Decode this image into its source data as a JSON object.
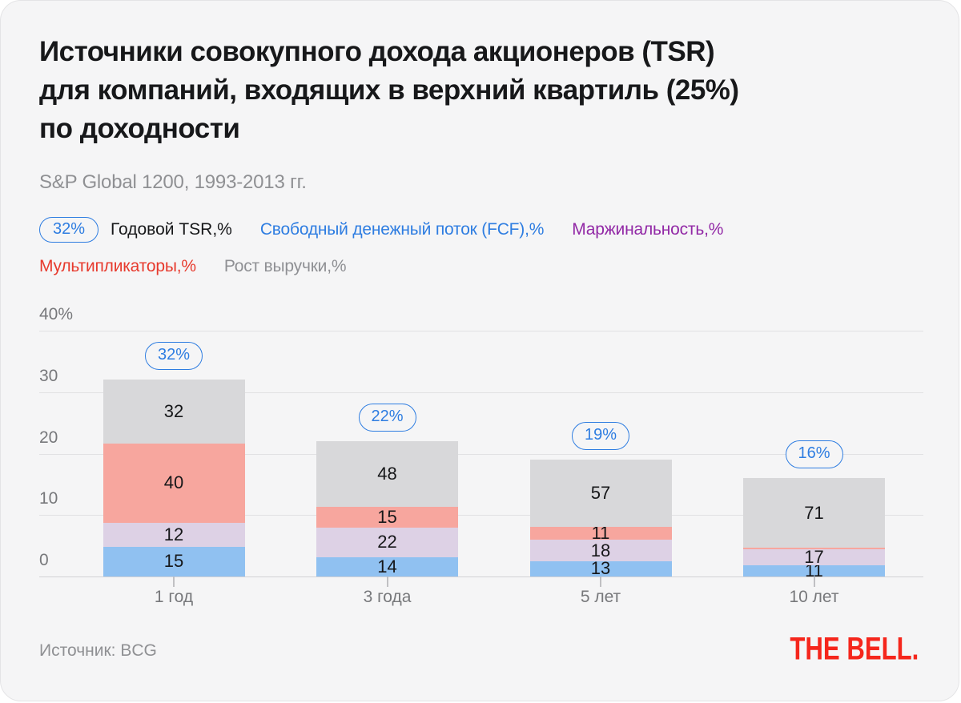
{
  "header": {
    "title_lines": [
      "Источники совокупного дохода акционеров (TSR)",
      "для компаний, входящих в верхний квартиль (25%)",
      "по доходности"
    ],
    "subtitle": "S&P Global 1200, 1993-2013 гг."
  },
  "legend": {
    "pill_text": "32%",
    "pill_label": "Годовой TSR,%",
    "row1": [
      {
        "label": "Свободный денежный поток (FCF),%",
        "color": "#2e7de1"
      },
      {
        "label": "Маржинальность,%",
        "color": "#9229a6"
      }
    ],
    "row2": [
      {
        "label": "Мультипликаторы,%",
        "color": "#e73a2d"
      },
      {
        "label": "Рост выручки,%",
        "color": "#8f9094"
      }
    ]
  },
  "footer": {
    "source": "Источник: BCG",
    "logo": "THE BELL."
  },
  "colors": {
    "card_bg": "#f5f5f6",
    "badge_blue": "#2e7de1",
    "axis_text": "#77787b",
    "gridline": "#e1e1e3",
    "zero_line": "#d2d2d5",
    "logo_red": "#f5261c",
    "bar_fcf": "#90c1f1",
    "bar_margin": "#ddd1e5",
    "bar_multiples": "#f7a69e",
    "bar_revenue_growth": "#d8d8da"
  },
  "chart_data": {
    "type": "bar",
    "stacked": true,
    "title": "Источники совокупного дохода акционеров (TSR) для компаний, входящих в верхний квартиль (25%) по доходности",
    "subtitle": "S&P Global 1200, 1993-2013 гг.",
    "categories": [
      "1 год",
      "3 года",
      "5 лет",
      "10 лет"
    ],
    "totals_name": "Годовой TSR,%",
    "totals": [
      32,
      22,
      19,
      16
    ],
    "total_labels": [
      "32%",
      "22%",
      "19%",
      "16%"
    ],
    "series_note": "values are % contribution to TSR; bar height equals annual TSR %; stack order bottom-to-top",
    "series": [
      {
        "name": "Свободный денежный поток (FCF),%",
        "color": "#90c1f1",
        "values": [
          15,
          14,
          13,
          11
        ],
        "labels": [
          "15",
          "14",
          "13",
          "11"
        ]
      },
      {
        "name": "Маржинальность,%",
        "color": "#ddd1e5",
        "values": [
          12,
          22,
          18,
          17
        ],
        "labels": [
          "12",
          "22",
          "18",
          "17"
        ]
      },
      {
        "name": "Мультипликаторы,%",
        "color": "#f7a69e",
        "values": [
          40,
          15,
          11,
          1
        ],
        "labels": [
          "40",
          "15",
          "11",
          ""
        ]
      },
      {
        "name": "Рост выручки,%",
        "color": "#d8d8da",
        "values": [
          32,
          48,
          57,
          71
        ],
        "labels": [
          "32",
          "48",
          "57",
          "71"
        ]
      }
    ],
    "y_ticks": [
      {
        "value": 40,
        "label": "40%"
      },
      {
        "value": 30,
        "label": "30"
      },
      {
        "value": 20,
        "label": "20"
      },
      {
        "value": 10,
        "label": "10"
      },
      {
        "value": 0,
        "label": "0"
      }
    ],
    "ylim": [
      0,
      40
    ],
    "grid": true,
    "legend_position": "top",
    "source": "Источник: BCG"
  }
}
